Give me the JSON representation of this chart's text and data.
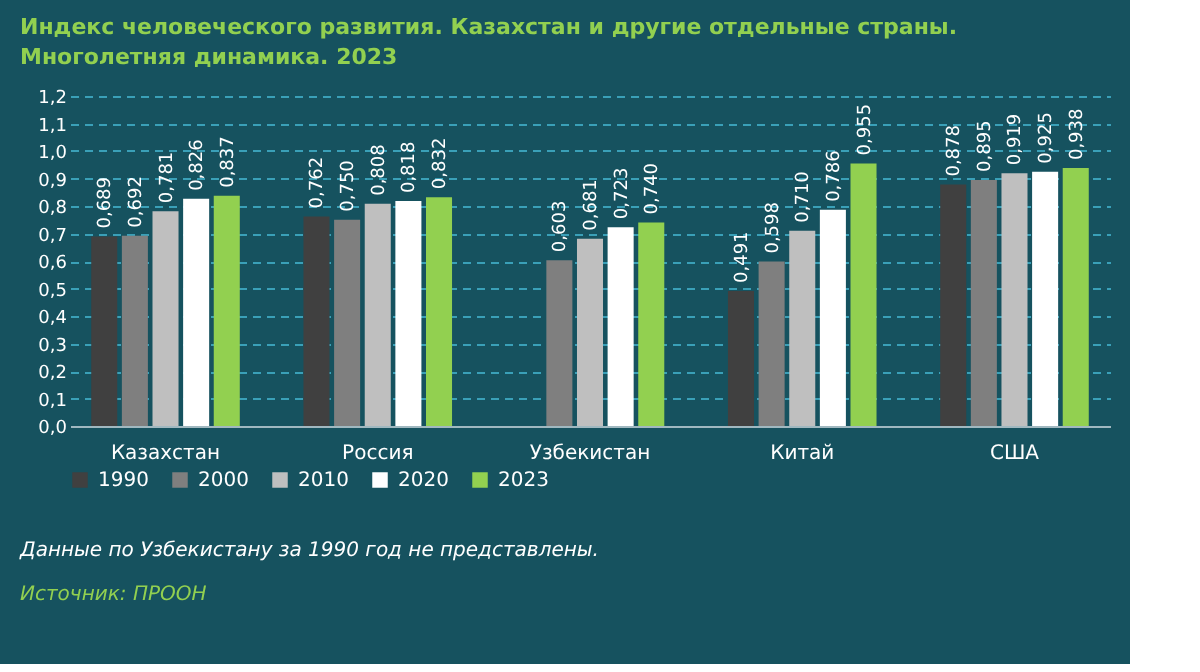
{
  "chart_data": {
    "type": "bar",
    "title": "Индекс человеческого развития. Казахстан и другие отдельные страны. Многолетняя динамика. 2023",
    "categories": [
      "Казахстан",
      "Россия",
      "Узбекистан",
      "Китай",
      "США"
    ],
    "series": [
      {
        "name": "1990",
        "color": "#404040",
        "values": [
          0.689,
          0.762,
          null,
          0.491,
          0.878
        ],
        "value_labels": [
          "0,689",
          "0,762",
          null,
          "0,491",
          "0,878"
        ]
      },
      {
        "name": "2000",
        "color": "#7f7f7f",
        "values": [
          0.692,
          0.75,
          0.603,
          0.598,
          0.895
        ],
        "value_labels": [
          "0,692",
          "0,750",
          "0,603",
          "0,598",
          "0,895"
        ]
      },
      {
        "name": "2010",
        "color": "#bfbfbf",
        "values": [
          0.781,
          0.808,
          0.681,
          0.71,
          0.919
        ],
        "value_labels": [
          "0,781",
          "0,808",
          "0,681",
          "0,710",
          "0,919"
        ]
      },
      {
        "name": "2020",
        "color": "#ffffff",
        "values": [
          0.826,
          0.818,
          0.723,
          0.786,
          0.925
        ],
        "value_labels": [
          "0,826",
          "0,818",
          "0,723",
          "0,786",
          "0,925"
        ]
      },
      {
        "name": "2023",
        "color": "#92d050",
        "values": [
          0.837,
          0.832,
          0.74,
          0.955,
          0.938
        ],
        "value_labels": [
          "0,837",
          "0,832",
          "0,740",
          "0,955",
          "0,938"
        ]
      }
    ],
    "ylim": [
      0,
      1.2
    ],
    "yticks": [
      {
        "value": 0,
        "label": "0,0"
      },
      {
        "value": 0.1,
        "label": "0,1"
      },
      {
        "value": 0.2,
        "label": "0,2"
      },
      {
        "value": 0.3,
        "label": "0,3"
      },
      {
        "value": 0.4,
        "label": "0,4"
      },
      {
        "value": 0.5,
        "label": "0,5"
      },
      {
        "value": 0.6,
        "label": "0,6"
      },
      {
        "value": 0.7,
        "label": "0,7"
      },
      {
        "value": 0.8,
        "label": "0,8"
      },
      {
        "value": 0.9,
        "label": "0,9"
      },
      {
        "value": 1.0,
        "label": "1,0"
      },
      {
        "value": 1.1,
        "label": "1,1"
      },
      {
        "value": 1.2,
        "label": "1,2"
      }
    ],
    "grid": "y",
    "legend": "bottom",
    "annotations": [
      "Данные по Узбекистану за 1990 год не представлены.",
      "Источник: ПРООН"
    ]
  }
}
